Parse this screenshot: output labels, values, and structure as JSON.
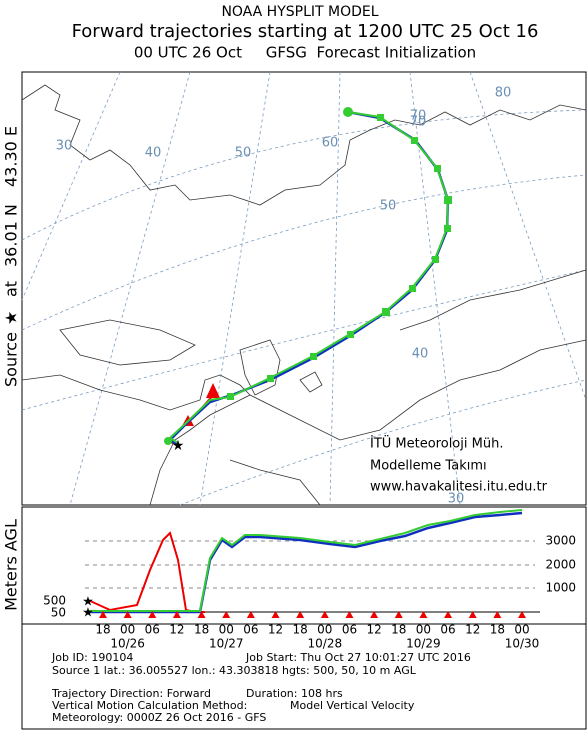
{
  "header": {
    "line1": "NOAA HYSPLIT MODEL",
    "line2": "Forward trajectories starting at 1200 UTC 25 Oct 16",
    "line3": "00 UTC 26 Oct     GFSG  Forecast Initialization"
  },
  "side_label": {
    "source": "Source",
    "at": "at",
    "lat": "36.01 N",
    "lon": "43.30 E"
  },
  "map": {
    "lon_labels": [
      "30",
      "40",
      "50",
      "60",
      "70",
      "80"
    ],
    "lat_labels": [
      "70",
      "50",
      "40",
      "30"
    ],
    "watermark": [
      "İTÜ Meteoroloji Müh.",
      "Modelleme Takımı",
      "www.havakalitesi.itu.edu.tr"
    ]
  },
  "profile": {
    "y_label": "Meters AGL",
    "ticks": [
      "3000",
      "2000",
      "1000"
    ],
    "source_heights": [
      "500",
      "50"
    ],
    "hours": [
      "18",
      "00",
      "06",
      "12",
      "18",
      "00",
      "06",
      "12",
      "18",
      "00",
      "06",
      "12",
      "18",
      "00",
      "06",
      "12",
      "18",
      "00"
    ],
    "dates": [
      "10/26",
      "10/27",
      "10/28",
      "10/29",
      "10/30"
    ]
  },
  "info": {
    "job_id": "Job ID: 190104",
    "job_start": "Job Start: Thu Oct 27 10:01:27 UTC 2016",
    "source": "Source 1 lat.: 36.005527  lon.: 43.303818  hgts: 500, 50, 10 m AGL",
    "direction": "Trajectory Direction: Forward",
    "duration": "Duration: 108 hrs",
    "method_label": "Vertical Motion Calculation Method:",
    "method_value": "Model Vertical Velocity",
    "meteorology": "Meteorology: 0000Z 26 Oct 2016 - GFS"
  }
}
